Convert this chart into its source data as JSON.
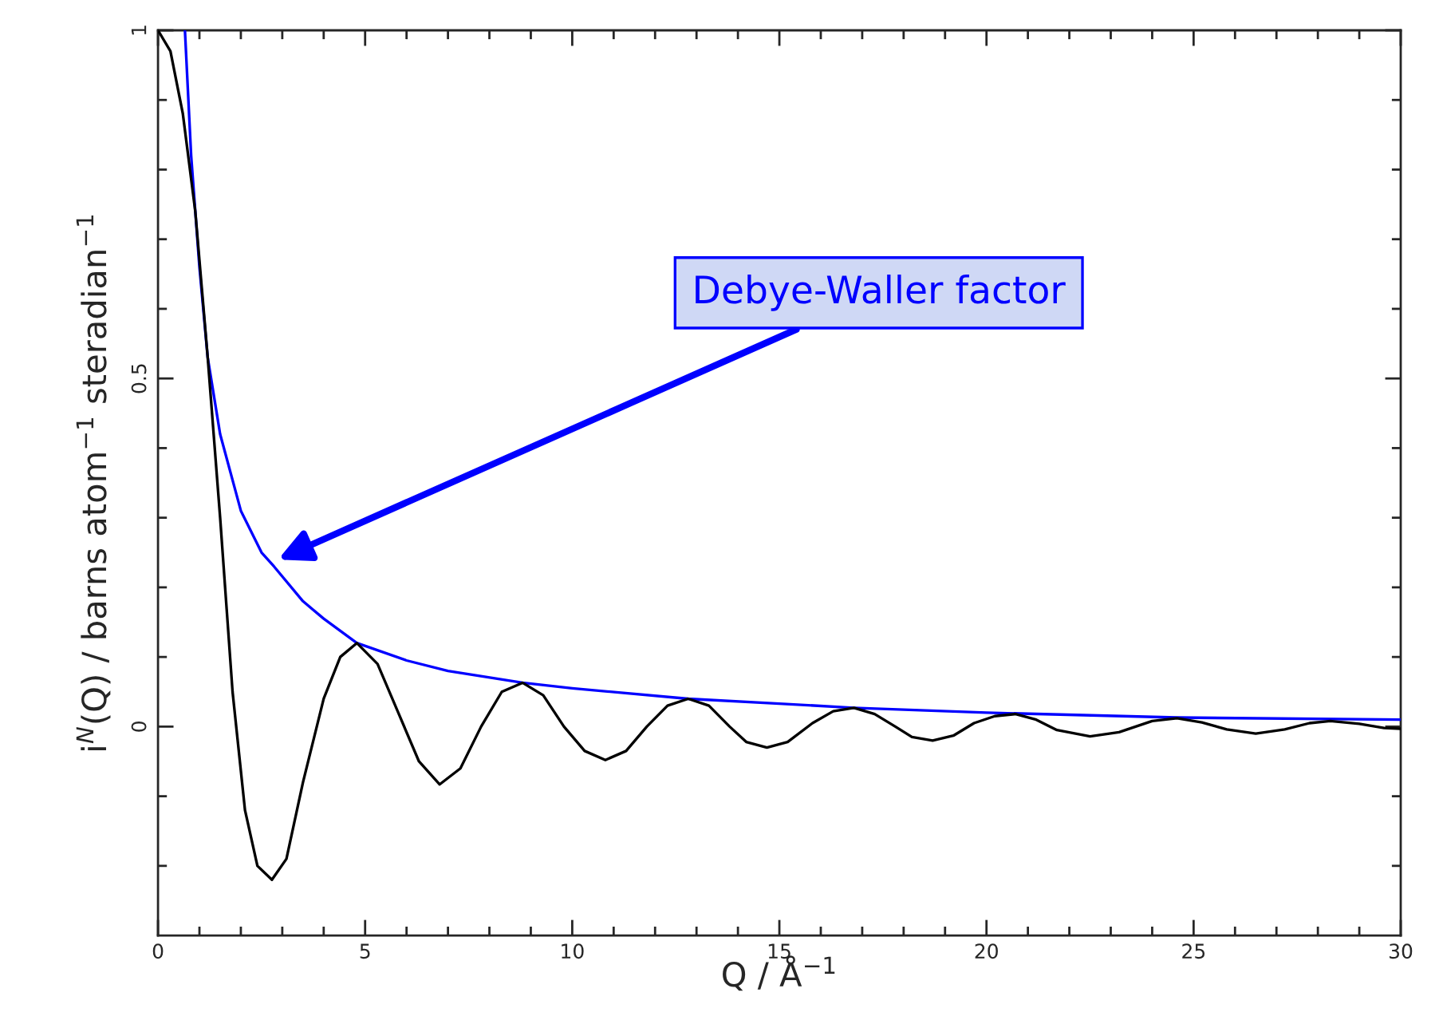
{
  "chart_data": {
    "type": "line",
    "xlabel": "Q / Å$^{−1}$",
    "ylabel": "i$^{N}$(Q) / barns atom$^{−1}$ steradian$^{−1}$",
    "xlim": [
      0,
      30
    ],
    "ylim": [
      -0.3,
      1
    ],
    "xticks": [
      0,
      {
        "value": 1,
        "label": null
      },
      {
        "value": 2,
        "label": null
      },
      {
        "value": 3,
        "label": null
      },
      {
        "value": 4,
        "label": null
      },
      5,
      {
        "value": 6,
        "label": null
      },
      {
        "value": 7,
        "label": null
      },
      {
        "value": 8,
        "label": null
      },
      {
        "value": 9,
        "label": null
      },
      10,
      {
        "value": 11,
        "label": null
      },
      {
        "value": 12,
        "label": null
      },
      {
        "value": 13,
        "label": null
      },
      {
        "value": 14,
        "label": null
      },
      15,
      {
        "value": 16,
        "label": null
      },
      {
        "value": 17,
        "label": null
      },
      {
        "value": 18,
        "label": null
      },
      {
        "value": 19,
        "label": null
      },
      20,
      {
        "value": 21,
        "label": null
      },
      {
        "value": 22,
        "label": null
      },
      {
        "value": 23,
        "label": null
      },
      {
        "value": 24,
        "label": null
      },
      25,
      {
        "value": 26,
        "label": null
      },
      {
        "value": 27,
        "label": null
      },
      {
        "value": 28,
        "label": null
      },
      {
        "value": 29,
        "label": null
      },
      30
    ],
    "yticks": [
      {
        "value": -0.2,
        "label": null
      },
      {
        "value": -0.1,
        "label": null
      },
      0,
      {
        "value": 0.1,
        "label": null
      },
      {
        "value": 0.2,
        "label": null
      },
      {
        "value": 0.3,
        "label": null
      },
      {
        "value": 0.4,
        "label": null
      },
      0.5,
      {
        "value": 0.6,
        "label": null
      },
      {
        "value": 0.7,
        "label": null
      },
      {
        "value": 0.8,
        "label": null
      },
      {
        "value": 0.9,
        "label": null
      },
      1
    ],
    "grid": false,
    "legend": false,
    "marker": "none",
    "line_style": "solid",
    "series": [
      {
        "color": "#000000",
        "x": [
          0,
          0.3,
          0.6,
          0.9,
          1.2,
          1.5,
          1.8,
          2.1,
          2.4,
          2.75,
          3.1,
          3.5,
          4,
          4.4,
          4.8,
          5.3,
          5.8,
          6.3,
          6.8,
          7.3,
          7.8,
          8.3,
          8.8,
          9.3,
          9.8,
          10.3,
          10.8,
          11.3,
          11.8,
          12.3,
          12.8,
          13.3,
          13.8,
          14.2,
          14.7,
          15.2,
          15.8,
          16.3,
          16.8,
          17.3,
          17.8,
          18.2,
          18.7,
          19.2,
          19.7,
          20.2,
          20.7,
          21.2,
          21.7,
          22.5,
          23.2,
          24,
          24.6,
          25.2,
          25.8,
          26.5,
          27.2,
          27.8,
          28.3,
          29,
          29.6,
          30
        ],
        "values": [
          1,
          0.97,
          0.88,
          0.74,
          0.53,
          0.3,
          0.05,
          -0.12,
          -0.2,
          -0.22,
          -0.19,
          -0.08,
          0.04,
          0.1,
          0.12,
          0.09,
          0.02,
          -0.05,
          -0.083,
          -0.06,
          0,
          0.05,
          0.063,
          0.045,
          0,
          -0.035,
          -0.048,
          -0.035,
          0,
          0.03,
          0.04,
          0.03,
          0,
          -0.022,
          -0.03,
          -0.022,
          0.005,
          0.022,
          0.027,
          0.018,
          0,
          -0.015,
          -0.02,
          -0.013,
          0.005,
          0.015,
          0.018,
          0.01,
          -0.005,
          -0.014,
          -0.008,
          0.008,
          0.012,
          0.006,
          -0.004,
          -0.01,
          -0.004,
          0.005,
          0.008,
          0.004,
          -0.002,
          -0.003
        ]
      },
      {
        "color": "#0000ff",
        "x": [
          0.65,
          0.8,
          1,
          1.2,
          1.5,
          2,
          2.5,
          2.8,
          3.5,
          4,
          4.8,
          6,
          7,
          8.8,
          10,
          12.8,
          15,
          16.8,
          20,
          24.6,
          30
        ],
        "values": [
          1,
          0.82,
          0.66,
          0.53,
          0.42,
          0.31,
          0.25,
          0.23,
          0.18,
          0.155,
          0.12,
          0.095,
          0.08,
          0.063,
          0.055,
          0.04,
          0.033,
          0.027,
          0.02,
          0.013,
          0.01
        ]
      }
    ],
    "annotations": [
      {
        "text": "Debye-Waller factor",
        "x": 2.9,
        "y": 0.24
      }
    ]
  }
}
